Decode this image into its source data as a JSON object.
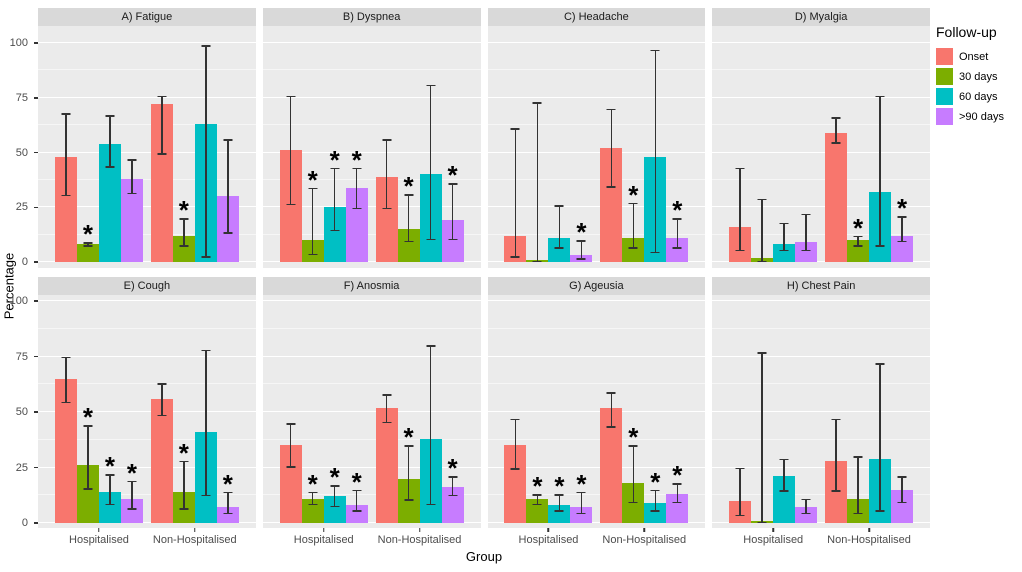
{
  "figure": {
    "y_axis": {
      "label": "Percentage",
      "ticks": [
        0,
        25,
        50,
        75,
        100
      ]
    },
    "x_axis": {
      "label": "Group",
      "categories": [
        "Hospitalised",
        "Non-Hospitalised"
      ]
    },
    "legend": {
      "title": "Follow-up",
      "items": [
        {
          "label": "Onset",
          "color": "#F8766D"
        },
        {
          "label": "30 days",
          "color": "#7CAE00"
        },
        {
          "label": "60 days",
          "color": "#00BFC4"
        },
        {
          "label": ">90 days",
          "color": "#C77CFF"
        }
      ]
    },
    "sig_marker": "*",
    "style": {
      "panel_bg": "#EBEBEB",
      "strip_bg": "#D9D9D9",
      "grid_color": "#FFFFFF",
      "error_bar_color": "#333333",
      "tick_text_color": "#4D4D4D"
    }
  },
  "chart_data": {
    "type": "bar",
    "layout": "faceted 4x2 grid, grouped (dodged) bars with error bars; asterisk marks significance",
    "xlabel": "Group",
    "ylabel": "Percentage",
    "ylim": [
      0,
      100
    ],
    "grid": true,
    "legend_position": "right",
    "series_order": [
      "Onset",
      "30 days",
      "60 days",
      ">90 days"
    ],
    "categories": [
      "Hospitalised",
      "Non-Hospitalised"
    ],
    "panels": [
      {
        "label": "A) Fatigue",
        "groups": [
          {
            "name": "Hospitalised",
            "bars": [
              {
                "series": "Onset",
                "value": 48,
                "ci": [
                  30,
                  68
                ],
                "significant": false
              },
              {
                "series": "30 days",
                "value": 8,
                "ci": [
                  7,
                  9
                ],
                "significant": true
              },
              {
                "series": "60 days",
                "value": 54,
                "ci": [
                  43,
                  67
                ],
                "significant": false
              },
              {
                "series": ">90 days",
                "value": 38,
                "ci": [
                  31,
                  47
                ],
                "significant": false
              }
            ]
          },
          {
            "name": "Non-Hospitalised",
            "bars": [
              {
                "series": "Onset",
                "value": 72,
                "ci": [
                  49,
                  76
                ],
                "significant": false
              },
              {
                "series": "30 days",
                "value": 12,
                "ci": [
                  7,
                  20
                ],
                "significant": true
              },
              {
                "series": "60 days",
                "value": 63,
                "ci": [
                  2,
                  99
                ],
                "significant": false
              },
              {
                "series": ">90 days",
                "value": 30,
                "ci": [
                  13,
                  56
                ],
                "significant": false
              }
            ]
          }
        ]
      },
      {
        "label": "B) Dyspnea",
        "groups": [
          {
            "name": "Hospitalised",
            "bars": [
              {
                "series": "Onset",
                "value": 51,
                "ci": [
                  26,
                  76
                ],
                "significant": false
              },
              {
                "series": "30 days",
                "value": 10,
                "ci": [
                  3,
                  34
                ],
                "significant": true
              },
              {
                "series": "60 days",
                "value": 25,
                "ci": [
                  14,
                  43
                ],
                "significant": true
              },
              {
                "series": ">90 days",
                "value": 34,
                "ci": [
                  24,
                  43
                ],
                "significant": true
              }
            ]
          },
          {
            "name": "Non-Hospitalised",
            "bars": [
              {
                "series": "Onset",
                "value": 39,
                "ci": [
                  24,
                  56
                ],
                "significant": false
              },
              {
                "series": "30 days",
                "value": 15,
                "ci": [
                  9,
                  31
                ],
                "significant": true
              },
              {
                "series": "60 days",
                "value": 40,
                "ci": [
                  10,
                  81
                ],
                "significant": false
              },
              {
                "series": ">90 days",
                "value": 19,
                "ci": [
                  10,
                  36
                ],
                "significant": true
              }
            ]
          }
        ]
      },
      {
        "label": "C) Headache",
        "groups": [
          {
            "name": "Hospitalised",
            "bars": [
              {
                "series": "Onset",
                "value": 12,
                "ci": [
                  2,
                  61
                ],
                "significant": false
              },
              {
                "series": "30 days",
                "value": 1,
                "ci": [
                  0,
                  73
                ],
                "significant": false
              },
              {
                "series": "60 days",
                "value": 11,
                "ci": [
                  6,
                  26
                ],
                "significant": false
              },
              {
                "series": ">90 days",
                "value": 3,
                "ci": [
                  1,
                  10
                ],
                "significant": true
              }
            ]
          },
          {
            "name": "Non-Hospitalised",
            "bars": [
              {
                "series": "Onset",
                "value": 52,
                "ci": [
                  34,
                  70
                ],
                "significant": false
              },
              {
                "series": "30 days",
                "value": 11,
                "ci": [
                  6,
                  27
                ],
                "significant": true
              },
              {
                "series": "60 days",
                "value": 48,
                "ci": [
                  4,
                  97
                ],
                "significant": false
              },
              {
                "series": ">90 days",
                "value": 11,
                "ci": [
                  6,
                  20
                ],
                "significant": true
              }
            ]
          }
        ]
      },
      {
        "label": "D) Myalgia",
        "groups": [
          {
            "name": "Hospitalised",
            "bars": [
              {
                "series": "Onset",
                "value": 16,
                "ci": [
                  5,
                  43
                ],
                "significant": false
              },
              {
                "series": "30 days",
                "value": 2,
                "ci": [
                  0,
                  29
                ],
                "significant": false
              },
              {
                "series": "60 days",
                "value": 8,
                "ci": [
                  5,
                  18
                ],
                "significant": false
              },
              {
                "series": ">90 days",
                "value": 9,
                "ci": [
                  5,
                  22
                ],
                "significant": false
              }
            ]
          },
          {
            "name": "Non-Hospitalised",
            "bars": [
              {
                "series": "Onset",
                "value": 59,
                "ci": [
                  54,
                  66
                ],
                "significant": false
              },
              {
                "series": "30 days",
                "value": 10,
                "ci": [
                  7,
                  12
                ],
                "significant": true
              },
              {
                "series": "60 days",
                "value": 32,
                "ci": [
                  7,
                  76
                ],
                "significant": false
              },
              {
                "series": ">90 days",
                "value": 12,
                "ci": [
                  9,
                  21
                ],
                "significant": true
              }
            ]
          }
        ]
      },
      {
        "label": "E) Cough",
        "groups": [
          {
            "name": "Hospitalised",
            "bars": [
              {
                "series": "Onset",
                "value": 65,
                "ci": [
                  54,
                  75
                ],
                "significant": false
              },
              {
                "series": "30 days",
                "value": 26,
                "ci": [
                  15,
                  44
                ],
                "significant": true
              },
              {
                "series": "60 days",
                "value": 14,
                "ci": [
                  8,
                  22
                ],
                "significant": true
              },
              {
                "series": ">90 days",
                "value": 11,
                "ci": [
                  6,
                  19
                ],
                "significant": true
              }
            ]
          },
          {
            "name": "Non-Hospitalised",
            "bars": [
              {
                "series": "Onset",
                "value": 56,
                "ci": [
                  48,
                  63
                ],
                "significant": false
              },
              {
                "series": "30 days",
                "value": 14,
                "ci": [
                  6,
                  28
                ],
                "significant": true
              },
              {
                "series": "60 days",
                "value": 41,
                "ci": [
                  12,
                  78
                ],
                "significant": false
              },
              {
                "series": ">90 days",
                "value": 7,
                "ci": [
                  4,
                  14
                ],
                "significant": true
              }
            ]
          }
        ]
      },
      {
        "label": "F) Anosmia",
        "groups": [
          {
            "name": "Hospitalised",
            "bars": [
              {
                "series": "Onset",
                "value": 35,
                "ci": [
                  25,
                  45
                ],
                "significant": false
              },
              {
                "series": "30 days",
                "value": 11,
                "ci": [
                  8,
                  14
                ],
                "significant": true
              },
              {
                "series": "60 days",
                "value": 12,
                "ci": [
                  7,
                  17
                ],
                "significant": true
              },
              {
                "series": ">90 days",
                "value": 8,
                "ci": [
                  5,
                  15
                ],
                "significant": true
              }
            ]
          },
          {
            "name": "Non-Hospitalised",
            "bars": [
              {
                "series": "Onset",
                "value": 52,
                "ci": [
                  45,
                  58
                ],
                "significant": false
              },
              {
                "series": "30 days",
                "value": 20,
                "ci": [
                  10,
                  35
                ],
                "significant": true
              },
              {
                "series": "60 days",
                "value": 38,
                "ci": [
                  8,
                  80
                ],
                "significant": false
              },
              {
                "series": ">90 days",
                "value": 16,
                "ci": [
                  12,
                  21
                ],
                "significant": true
              }
            ]
          }
        ]
      },
      {
        "label": "G) Ageusia",
        "groups": [
          {
            "name": "Hospitalised",
            "bars": [
              {
                "series": "Onset",
                "value": 35,
                "ci": [
                  24,
                  47
                ],
                "significant": false
              },
              {
                "series": "30 days",
                "value": 11,
                "ci": [
                  8,
                  13
                ],
                "significant": true
              },
              {
                "series": "60 days",
                "value": 8,
                "ci": [
                  5,
                  13
                ],
                "significant": true
              },
              {
                "series": ">90 days",
                "value": 7,
                "ci": [
                  4,
                  14
                ],
                "significant": true
              }
            ]
          },
          {
            "name": "Non-Hospitalised",
            "bars": [
              {
                "series": "Onset",
                "value": 52,
                "ci": [
                  43,
                  59
                ],
                "significant": false
              },
              {
                "series": "30 days",
                "value": 18,
                "ci": [
                  9,
                  35
                ],
                "significant": true
              },
              {
                "series": "60 days",
                "value": 9,
                "ci": [
                  5,
                  15
                ],
                "significant": true
              },
              {
                "series": ">90 days",
                "value": 13,
                "ci": [
                  9,
                  18
                ],
                "significant": true
              }
            ]
          }
        ]
      },
      {
        "label": "H) Chest Pain",
        "groups": [
          {
            "name": "Hospitalised",
            "bars": [
              {
                "series": "Onset",
                "value": 10,
                "ci": [
                  3,
                  25
                ],
                "significant": false
              },
              {
                "series": "30 days",
                "value": 1,
                "ci": [
                  0,
                  77
                ],
                "significant": false
              },
              {
                "series": "60 days",
                "value": 21,
                "ci": [
                  14,
                  29
                ],
                "significant": false
              },
              {
                "series": ">90 days",
                "value": 7,
                "ci": [
                  4,
                  11
                ],
                "significant": false
              }
            ]
          },
          {
            "name": "Non-Hospitalised",
            "bars": [
              {
                "series": "Onset",
                "value": 28,
                "ci": [
                  14,
                  47
                ],
                "significant": false
              },
              {
                "series": "30 days",
                "value": 11,
                "ci": [
                  4,
                  30
                ],
                "significant": false
              },
              {
                "series": "60 days",
                "value": 29,
                "ci": [
                  5,
                  72
                ],
                "significant": false
              },
              {
                "series": ">90 days",
                "value": 15,
                "ci": [
                  9,
                  21
                ],
                "significant": false
              }
            ]
          }
        ]
      }
    ]
  }
}
